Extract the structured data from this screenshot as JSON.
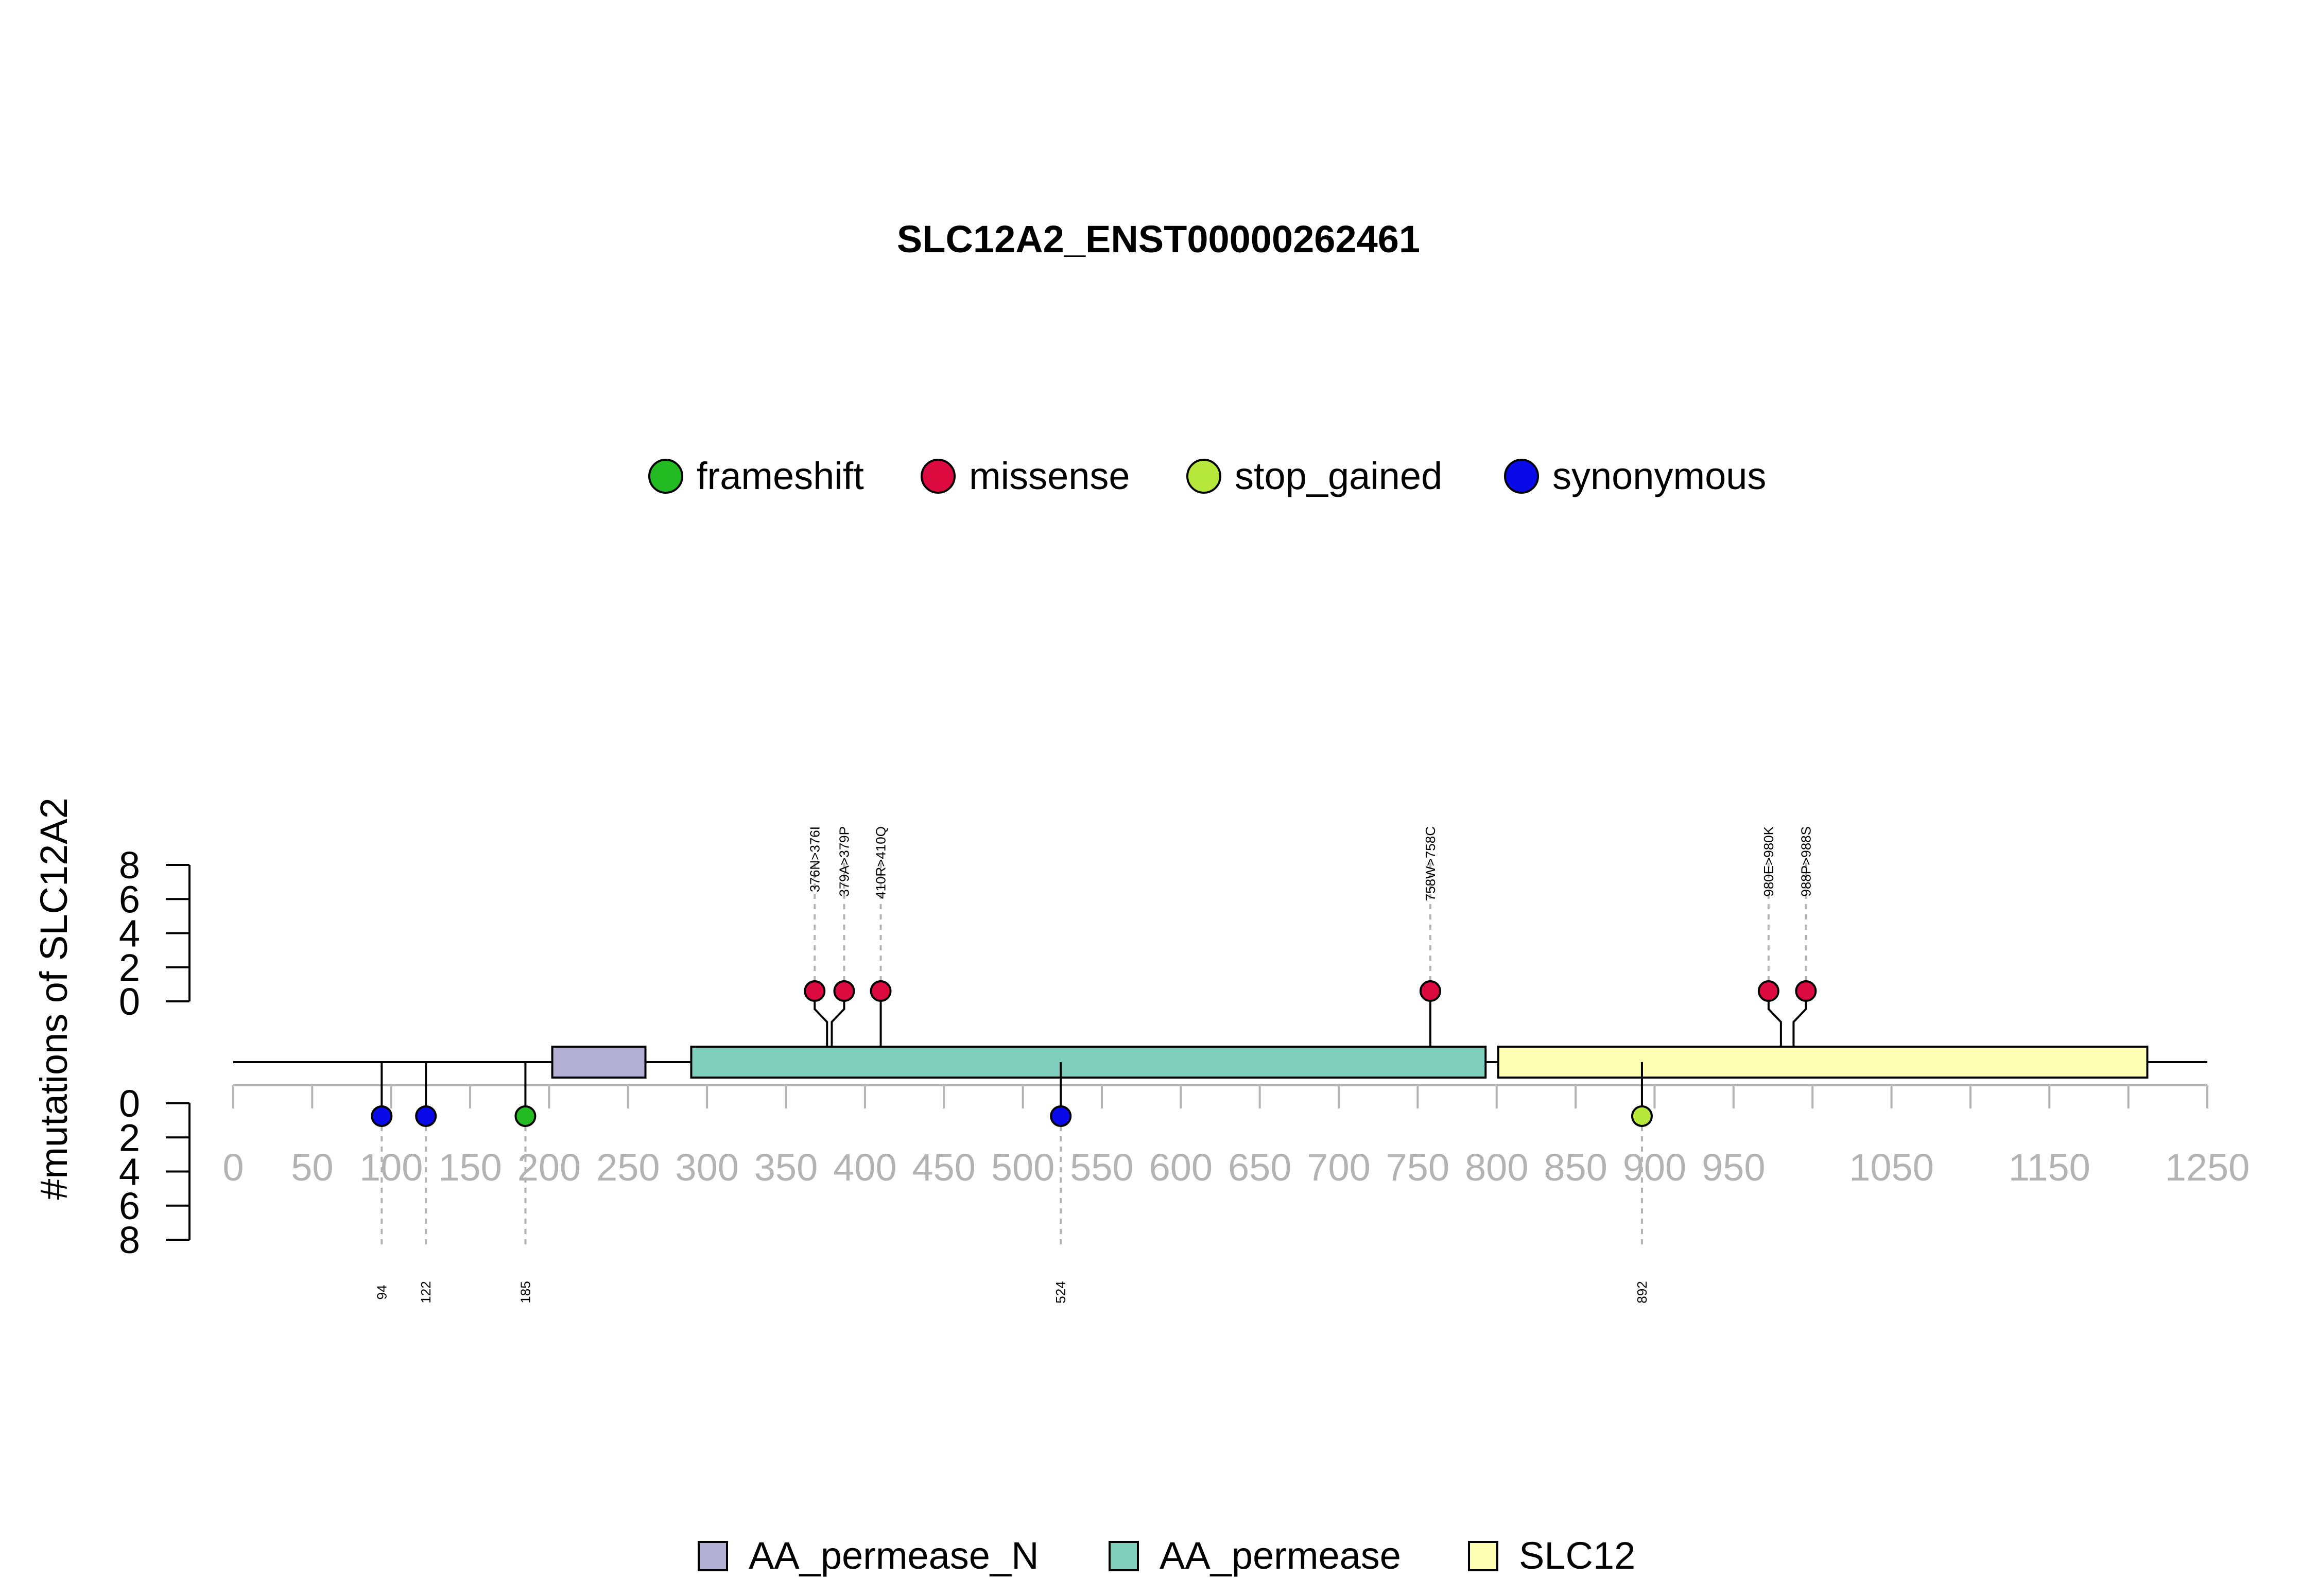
{
  "chart_data": {
    "type": "lollipop",
    "title": "SLC12A2_ENST00000262461",
    "ylabel": "#mutations of SLC12A2",
    "xlim": [
      0,
      1250
    ],
    "x_ticks": [
      0,
      50,
      100,
      150,
      200,
      250,
      300,
      350,
      400,
      450,
      500,
      550,
      600,
      650,
      700,
      750,
      800,
      850,
      900,
      950,
      1000,
      1050,
      1100,
      1150,
      1200,
      1250
    ],
    "x_tick_labels": [
      "0",
      "50",
      "100",
      "150",
      "200",
      "250",
      "300",
      "350",
      "400",
      "450",
      "500",
      "550",
      "600",
      "650",
      "700",
      "750",
      "800",
      "850",
      "900",
      "950",
      "1050",
      "1150",
      "1250"
    ],
    "x_tick_label_values": [
      0,
      50,
      100,
      150,
      200,
      250,
      300,
      350,
      400,
      450,
      500,
      550,
      600,
      650,
      700,
      750,
      800,
      850,
      900,
      950,
      1050,
      1150,
      1250
    ],
    "y_ticks": [
      0,
      2,
      4,
      6,
      8
    ],
    "ylim": [
      0,
      8
    ],
    "protein_length": 1212,
    "mutation_legend": [
      {
        "name": "frameshift",
        "color": "#22bb22"
      },
      {
        "name": "missense",
        "color": "#dd0a3f"
      },
      {
        "name": "stop_gained",
        "color": "#b5e83a"
      },
      {
        "name": "synonymous",
        "color": "#0a0ae8"
      }
    ],
    "domains": [
      {
        "name": "AA_permease_N",
        "start": 202,
        "end": 261,
        "color": "#b3aed4"
      },
      {
        "name": "AA_permease",
        "start": 290,
        "end": 793,
        "color": "#7fcdbb"
      },
      {
        "name": "SLC12",
        "start": 801,
        "end": 1212,
        "color": "#ffffb3"
      }
    ],
    "top_mutations": [
      {
        "position": 376,
        "label": "376N>376I",
        "type": "missense",
        "count": 1
      },
      {
        "position": 379,
        "label": "379A>379P",
        "type": "missense",
        "count": 1
      },
      {
        "position": 410,
        "label": "410R>410Q",
        "type": "missense",
        "count": 1
      },
      {
        "position": 758,
        "label": "758W>758C",
        "type": "missense",
        "count": 1
      },
      {
        "position": 980,
        "label": "980E>980K",
        "type": "missense",
        "count": 1
      },
      {
        "position": 988,
        "label": "988P>988S",
        "type": "missense",
        "count": 1
      }
    ],
    "bottom_mutations": [
      {
        "position": 94,
        "label": "94",
        "type": "synonymous",
        "count": 1
      },
      {
        "position": 122,
        "label": "122",
        "type": "synonymous",
        "count": 1
      },
      {
        "position": 185,
        "label": "185",
        "type": "frameshift",
        "count": 1
      },
      {
        "position": 524,
        "label": "524",
        "type": "synonymous",
        "count": 1
      },
      {
        "position": 892,
        "label": "892",
        "type": "stop_gained",
        "count": 1
      }
    ]
  }
}
